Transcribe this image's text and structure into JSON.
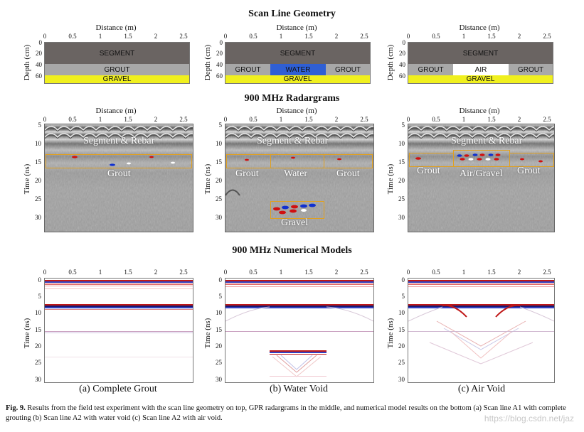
{
  "rows": {
    "geometry_title": "Scan Line Geometry",
    "radar_title": "900 MHz Radargrams",
    "numerical_title": "900 MHz Numerical Models"
  },
  "axes": {
    "distance_label": "Distance (m)",
    "depth_label": "Depth (cm)",
    "time_label": "Time (ns)",
    "x_ticks": [
      "0",
      "0.5",
      "1",
      "1.5",
      "2",
      "2.5"
    ],
    "depth_ticks": [
      "0",
      "20",
      "40",
      "60"
    ],
    "time_ticks_radar": [
      "5",
      "10",
      "15",
      "20",
      "25",
      "30"
    ],
    "time_ticks_num": [
      "0",
      "5",
      "10",
      "15",
      "20",
      "25",
      "30"
    ]
  },
  "geometry": {
    "a": {
      "segment": "SEGMENT",
      "grout": "GROUT",
      "gravel": "GRAVEL"
    },
    "b": {
      "segment": "SEGMENT",
      "grout_left": "GROUT",
      "void": "WATER",
      "grout_right": "GROUT",
      "gravel": "GRAVEL"
    },
    "c": {
      "segment": "SEGMENT",
      "grout_left": "GROUT",
      "void": "AIR",
      "grout_right": "GROUT",
      "gravel": "GRAVEL"
    }
  },
  "radargram_labels": {
    "a": {
      "top": "Segment & Rebar",
      "grout": "Grout"
    },
    "b": {
      "top": "Segment & Rebar",
      "grout_left": "Grout",
      "void": "Water",
      "grout_right": "Grout",
      "gravel": "Gravel"
    },
    "c": {
      "top": "Segment & Rebar",
      "grout_left": "Grout",
      "void": "Air/Gravel",
      "grout_right": "Grout"
    }
  },
  "subcaptions": [
    "(a) Complete Grout",
    "(b) Water Void",
    "(c) Air Void"
  ],
  "caption": {
    "label": "Fig. 9.",
    "text": "Results from the field test experiment with the scan line geometry on top, GPR radargrams in the middle, and numerical model results on the bottom (a) Scan line A1 with complete grouting (b) Scan line A2 with water void (c) Scan line A2 with air void."
  },
  "watermark": "https://blog.csdn.net/jaz",
  "colors": {
    "segment": "#6a6462",
    "grout": "#a8a8a8",
    "gravel": "#f0f01e",
    "water": "#2f5fd4",
    "box": "#e0a020"
  }
}
